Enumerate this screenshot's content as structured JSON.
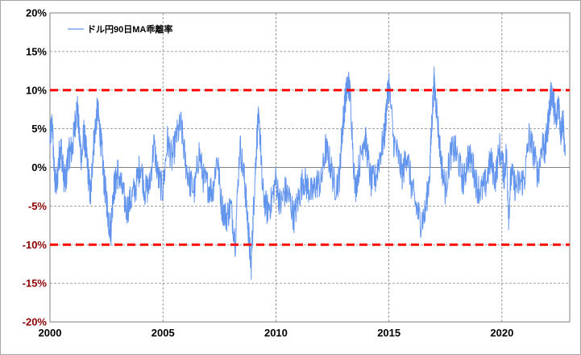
{
  "chart_data": {
    "type": "line",
    "title": "",
    "xlabel": "",
    "ylabel": "",
    "xlim": [
      2000,
      2022.8
    ],
    "ylim": [
      -20,
      20
    ],
    "x_ticks": [
      {
        "value": 2000,
        "label": "2000"
      },
      {
        "value": 2005,
        "label": "2005"
      },
      {
        "value": 2010,
        "label": "2010"
      },
      {
        "value": 2015,
        "label": "2015"
      },
      {
        "value": 2020,
        "label": "2020"
      }
    ],
    "y_ticks": [
      {
        "value": 20,
        "label": "20%",
        "color": "#000000"
      },
      {
        "value": 15,
        "label": "15%",
        "color": "#000000"
      },
      {
        "value": 10,
        "label": "10%",
        "color": "#000000"
      },
      {
        "value": 5,
        "label": "5%",
        "color": "#000000"
      },
      {
        "value": 0,
        "label": "0%",
        "color": "#000000"
      },
      {
        "value": -5,
        "label": "-5%",
        "color": "#8b0000"
      },
      {
        "value": -10,
        "label": "-10%",
        "color": "#8b0000"
      },
      {
        "value": -15,
        "label": "-15%",
        "color": "#8b0000"
      },
      {
        "value": -20,
        "label": "-20%",
        "color": "#8b0000"
      }
    ],
    "grid": true,
    "legend_position": "top-left",
    "reference_lines": [
      {
        "y": 10,
        "color": "#ff0000",
        "style": "dashed"
      },
      {
        "y": -10,
        "color": "#ff0000",
        "style": "dashed"
      }
    ],
    "series": [
      {
        "name": "ドル円90日MA乖離率",
        "color": "#6495ed",
        "x": [
          2000.0,
          2000.1,
          2000.2,
          2000.3,
          2000.4,
          2000.5,
          2000.6,
          2000.7,
          2000.8,
          2000.9,
          2001.0,
          2001.1,
          2001.2,
          2001.3,
          2001.4,
          2001.5,
          2001.6,
          2001.7,
          2001.8,
          2001.9,
          2002.0,
          2002.1,
          2002.2,
          2002.3,
          2002.4,
          2002.5,
          2002.6,
          2002.7,
          2002.8,
          2002.9,
          2003.0,
          2003.2,
          2003.4,
          2003.6,
          2003.8,
          2004.0,
          2004.2,
          2004.4,
          2004.6,
          2004.8,
          2005.0,
          2005.2,
          2005.4,
          2005.6,
          2005.8,
          2006.0,
          2006.2,
          2006.4,
          2006.6,
          2006.8,
          2007.0,
          2007.2,
          2007.4,
          2007.6,
          2007.8,
          2008.0,
          2008.2,
          2008.4,
          2008.6,
          2008.7,
          2008.8,
          2008.9,
          2009.0,
          2009.1,
          2009.2,
          2009.3,
          2009.4,
          2009.6,
          2009.8,
          2010.0,
          2010.2,
          2010.4,
          2010.6,
          2010.8,
          2011.0,
          2011.2,
          2011.4,
          2011.6,
          2011.8,
          2012.0,
          2012.2,
          2012.4,
          2012.6,
          2012.8,
          2012.9,
          2013.0,
          2013.1,
          2013.2,
          2013.3,
          2013.5,
          2013.7,
          2013.9,
          2014.0,
          2014.2,
          2014.4,
          2014.6,
          2014.8,
          2014.9,
          2015.0,
          2015.2,
          2015.4,
          2015.6,
          2015.8,
          2016.0,
          2016.2,
          2016.4,
          2016.6,
          2016.8,
          2016.9,
          2017.0,
          2017.1,
          2017.3,
          2017.5,
          2017.7,
          2017.9,
          2018.1,
          2018.3,
          2018.5,
          2018.7,
          2018.9,
          2019.1,
          2019.3,
          2019.5,
          2019.7,
          2019.9,
          2020.1,
          2020.2,
          2020.3,
          2020.4,
          2020.6,
          2020.8,
          2021.0,
          2021.2,
          2021.4,
          2021.6,
          2021.8,
          2021.9,
          2022.0,
          2022.1,
          2022.2,
          2022.3,
          2022.4,
          2022.5,
          2022.6,
          2022.7,
          2022.8
        ],
        "y": [
          3.5,
          6.0,
          -1.5,
          -2.5,
          1.5,
          2.5,
          -1.0,
          -2.0,
          1.5,
          2.0,
          2.5,
          5.5,
          8.0,
          4.0,
          1.0,
          4.5,
          2.0,
          -1.0,
          -4.0,
          2.0,
          5.0,
          7.5,
          5.0,
          2.0,
          -2.0,
          -4.0,
          -7.0,
          -8.0,
          -3.0,
          -2.0,
          -0.5,
          -3.0,
          -5.5,
          -4.0,
          -2.5,
          0.5,
          -3.0,
          -2.5,
          3.0,
          -1.5,
          -3.0,
          3.5,
          1.0,
          4.0,
          5.5,
          0.5,
          -2.0,
          -3.0,
          2.0,
          -1.5,
          -2.5,
          -3.0,
          1.5,
          -5.0,
          -6.5,
          -5.0,
          -9.5,
          3.0,
          -1.5,
          -5.0,
          -9.0,
          -13.0,
          -6.0,
          0.5,
          6.0,
          4.5,
          -3.0,
          -5.5,
          -4.5,
          -1.5,
          -5.0,
          -3.0,
          -4.0,
          -6.5,
          -4.0,
          -1.5,
          -2.5,
          -3.5,
          -2.0,
          -2.0,
          2.5,
          0.5,
          -2.5,
          -1.5,
          3.5,
          7.0,
          9.5,
          11.0,
          9.0,
          -3.0,
          0.5,
          4.0,
          3.0,
          -2.0,
          -1.5,
          1.5,
          4.0,
          8.0,
          11.0,
          3.5,
          1.5,
          -1.0,
          2.0,
          -2.5,
          -5.0,
          -7.0,
          -6.0,
          -1.0,
          6.0,
          11.0,
          8.0,
          1.0,
          -3.0,
          1.5,
          2.5,
          0.5,
          -2.0,
          1.5,
          0.5,
          -2.5,
          -3.0,
          -2.0,
          1.0,
          -1.5,
          2.5,
          -1.0,
          2.0,
          -6.0,
          -1.0,
          -2.5,
          -2.0,
          -1.5,
          4.0,
          2.0,
          -1.0,
          3.5,
          2.0,
          4.5,
          7.5,
          10.0,
          8.0,
          5.5,
          9.0,
          4.5,
          6.5,
          1.5
        ]
      }
    ]
  }
}
